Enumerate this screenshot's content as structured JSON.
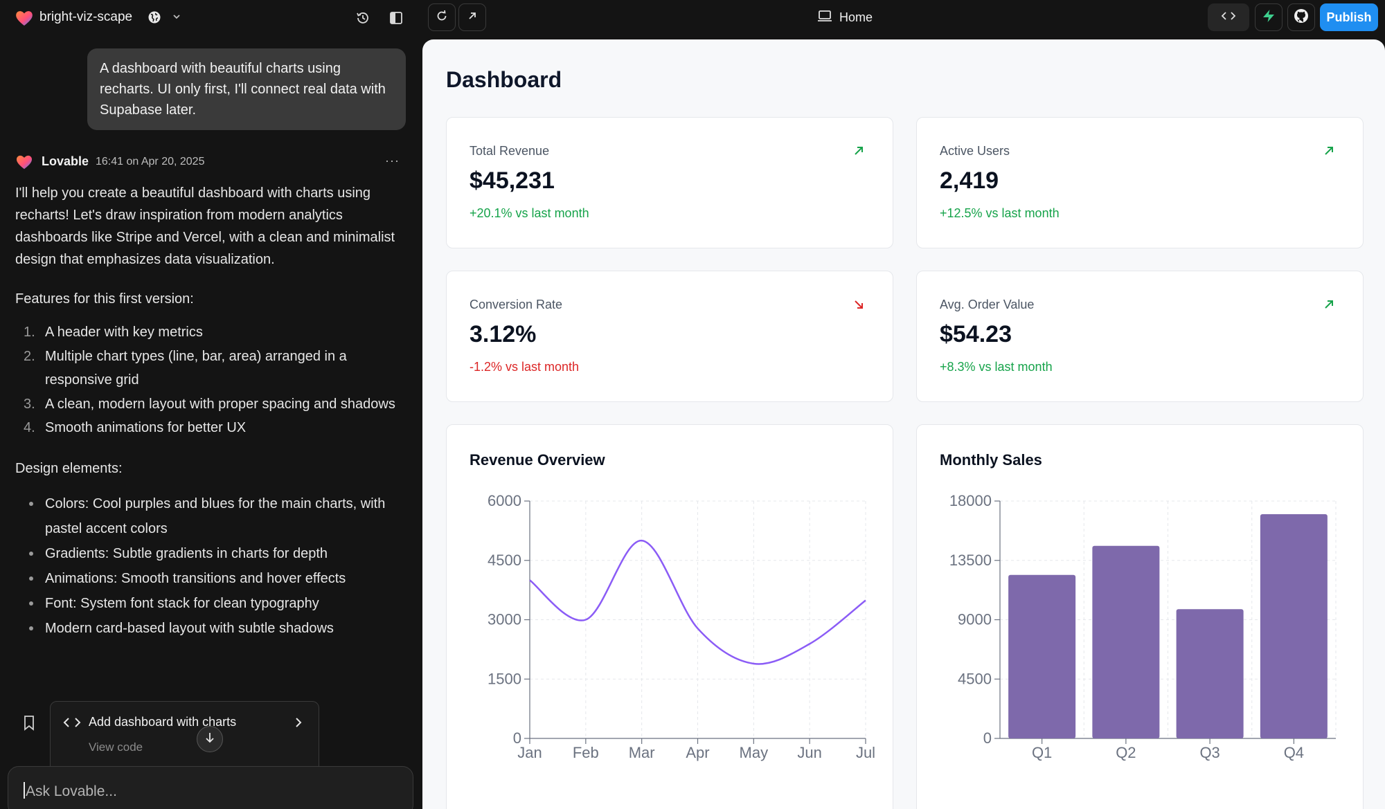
{
  "topbar": {
    "project_name": "bright-viz-scape",
    "home_label": "Home",
    "publish_label": "Publish",
    "icons": [
      "heart-logo-icon",
      "globe-icon",
      "chevron-down-icon",
      "history-icon",
      "sidebar-toggle-icon",
      "refresh-icon",
      "external-link-icon",
      "monitor-icon",
      "code-icon",
      "supabase-icon",
      "github-icon"
    ],
    "colors": {
      "publish": "#1f8ef1",
      "supabase": "#3ecf8e"
    }
  },
  "chat": {
    "user_message": "A dashboard with beautiful charts using recharts. UI only first, I'll connect real data with Supabase later.",
    "assistant": {
      "name": "Lovable",
      "time": "16:41 on Apr 20, 2025",
      "more": "···",
      "intro": "I'll help you create a beautiful dashboard with charts using recharts! Let's draw inspiration from modern analytics dashboards like Stripe and Vercel, with a clean and minimalist design that emphasizes data visualization.",
      "features_heading": "Features for this first version:",
      "features": [
        "A header with key metrics",
        "Multiple chart types (line, bar, area) arranged in a responsive grid",
        "A clean, modern layout with proper spacing and shadows",
        "Smooth animations for better UX"
      ],
      "design_heading": "Design elements:",
      "design": [
        "Colors: Cool purples and blues for the main charts, with pastel accent colors",
        "Gradients: Subtle gradients in charts for depth",
        "Animations: Smooth transitions and hover effects",
        "Font: System font stack for clean typography",
        "Modern card-based layout with subtle shadows"
      ]
    },
    "commit_card": {
      "title": "Add dashboard with charts",
      "subtitle": "View code"
    },
    "input_placeholder": "Ask Lovable..."
  },
  "dashboard": {
    "title": "Dashboard",
    "metrics": [
      {
        "label": "Total Revenue",
        "value": "$45,231",
        "delta": "+20.1% vs last month",
        "trend": "up"
      },
      {
        "label": "Active Users",
        "value": "2,419",
        "delta": "+12.5% vs last month",
        "trend": "up"
      },
      {
        "label": "Conversion Rate",
        "value": "3.12%",
        "delta": "-1.2% vs last month",
        "trend": "down"
      },
      {
        "label": "Avg. Order Value",
        "value": "$54.23",
        "delta": "+8.3% vs last month",
        "trend": "up"
      }
    ],
    "trend_colors": {
      "up": "#16a34a",
      "down": "#dc2626"
    }
  },
  "chart_data": [
    {
      "type": "line",
      "title": "Revenue Overview",
      "categories": [
        "Jan",
        "Feb",
        "Mar",
        "Apr",
        "May",
        "Jun",
        "Jul"
      ],
      "values": [
        4000,
        3000,
        5000,
        2780,
        1890,
        2390,
        3490
      ],
      "ylim": [
        0,
        6000
      ],
      "yticks": [
        0,
        1500,
        3000,
        4500,
        6000
      ],
      "grid": true,
      "color": "#8b5cf6"
    },
    {
      "type": "bar",
      "title": "Monthly Sales",
      "categories": [
        "Q1",
        "Q2",
        "Q3",
        "Q4"
      ],
      "values": [
        12400,
        14600,
        9800,
        17000
      ],
      "ylim": [
        0,
        18000
      ],
      "yticks": [
        0,
        4500,
        9000,
        13500,
        18000
      ],
      "grid": true,
      "color": "#7e69ab"
    }
  ]
}
